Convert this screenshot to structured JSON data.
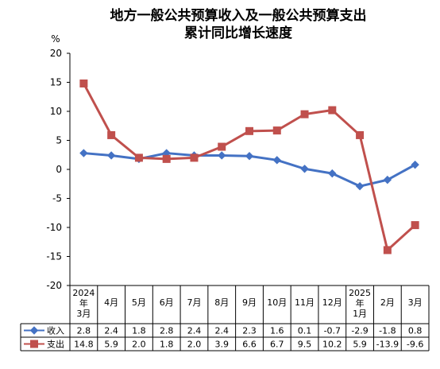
{
  "chart_data": {
    "type": "line",
    "title_lines": [
      "地方一般公共预算收入及一般公共预算支出",
      "累计同比增长速度"
    ],
    "ylabel": "%",
    "ylim": [
      -20,
      20
    ],
    "y_ticks": [
      "20",
      "15",
      "10",
      "5",
      "0",
      "-5",
      "-10",
      "-15",
      "-20"
    ],
    "grid": false,
    "categories": [
      [
        "2024",
        "年",
        "3月"
      ],
      [
        "4月"
      ],
      [
        "5月"
      ],
      [
        "6月"
      ],
      [
        "7月"
      ],
      [
        "8月"
      ],
      [
        "9月"
      ],
      [
        "10月"
      ],
      [
        "11月"
      ],
      [
        "12月"
      ],
      [
        "2025",
        "年",
        "1月"
      ],
      [
        "2月"
      ],
      [
        "3月"
      ]
    ],
    "series": [
      {
        "name": "收入",
        "color": "#4472C4",
        "marker": "diamond",
        "values": [
          2.8,
          2.4,
          1.8,
          2.8,
          2.4,
          2.4,
          2.3,
          1.6,
          0.1,
          -0.7,
          -2.9,
          -1.8,
          0.8
        ],
        "labels": [
          "2.8",
          "2.4",
          "1.8",
          "2.8",
          "2.4",
          "2.4",
          "2.3",
          "1.6",
          "0.1",
          "-0.7",
          "-2.9",
          "-1.8",
          "0.8"
        ]
      },
      {
        "name": "支出",
        "color": "#C0504D",
        "marker": "square",
        "values": [
          14.8,
          5.9,
          2.0,
          1.8,
          2.0,
          3.9,
          6.6,
          6.7,
          9.5,
          10.2,
          5.9,
          -13.9,
          -9.6
        ],
        "labels": [
          "14.8",
          "5.9",
          "2.0",
          "1.8",
          "2.0",
          "3.9",
          "6.6",
          "6.7",
          "9.5",
          "10.2",
          "5.9",
          "-13.9",
          "-9.6"
        ]
      }
    ],
    "data_table": true
  }
}
